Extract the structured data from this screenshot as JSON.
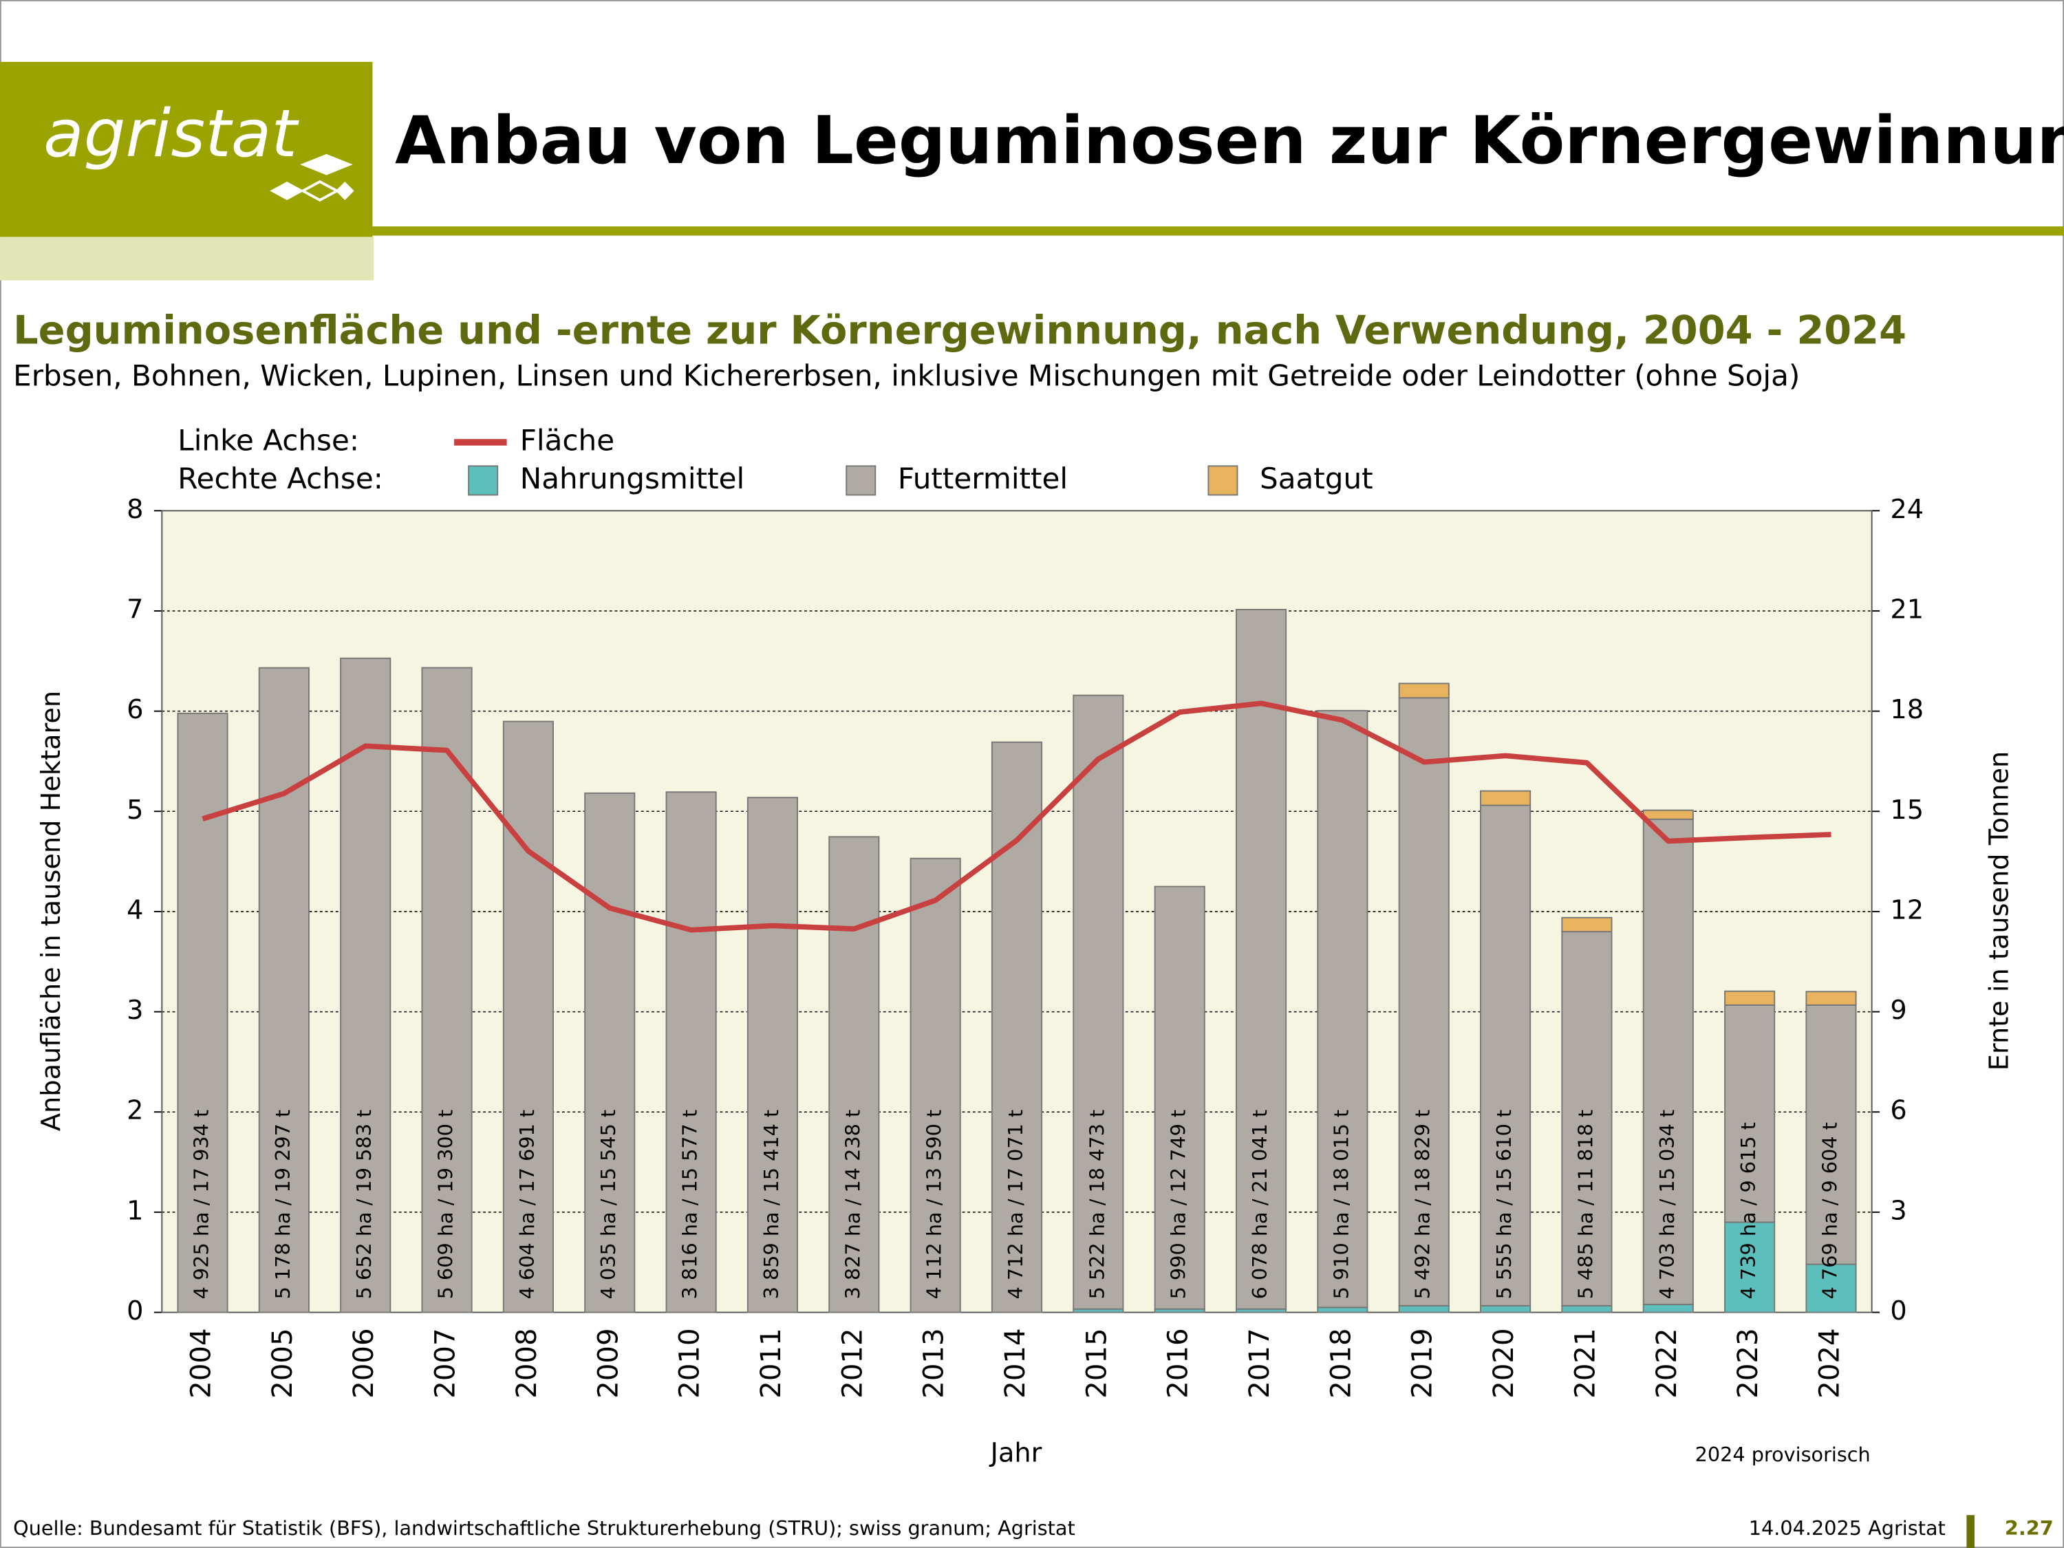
{
  "page": {
    "logo": "agristat",
    "title": "Anbau von Leguminosen zur Körnergewinnung",
    "source": "Quelle: Bundesamt für Statistik (BFS), landwirtschaftliche Strukturerhebung (STRU); swiss granum; Agristat",
    "date": "14.04.2025 Agristat",
    "page_number": "2.27"
  },
  "chart_data": {
    "type": "bar",
    "title": "Leguminosenfläche und -ernte zur Körnergewinnung, nach Verwendung, 2004 - 2024",
    "subtitle": "Erbsen, Bohnen, Wicken, Lupinen, Linsen und Kichererbsen, inklusive Mischungen mit Getreide oder Leindotter (ohne Soja)",
    "legend_left": "Linke Achse:",
    "legend_right": "Rechte Achse:",
    "xlabel": "Jahr",
    "ylabel": "Anbaufläche in tausend Hektaren",
    "y2label": "Ernte in tausend Tonnen",
    "note": "2024 provisorisch",
    "categories": [
      "2004",
      "2005",
      "2006",
      "2007",
      "2008",
      "2009",
      "2010",
      "2011",
      "2012",
      "2013",
      "2014",
      "2015",
      "2016",
      "2017",
      "2018",
      "2019",
      "2020",
      "2021",
      "2022",
      "2023",
      "2024"
    ],
    "bar_labels": [
      "4 925 ha / 17 934 t",
      "5 178 ha / 19 297 t",
      "5 652 ha / 19 583 t",
      "5 609 ha / 19 300 t",
      "4 604 ha / 17 691 t",
      "4 035 ha / 15 545 t",
      "3 816 ha / 15 577 t",
      "3 859 ha / 15 414 t",
      "3 827 ha / 14 238 t",
      "4 112 ha / 13 590 t",
      "4 712 ha / 17 071 t",
      "5 522 ha / 18 473 t",
      "5 990 ha / 12 749 t",
      "6 078 ha / 21 041 t",
      "5 910 ha / 18 015 t",
      "5 492 ha / 18 829 t",
      "5 555 ha / 15 610 t",
      "5 485 ha / 11 818 t",
      "4 703 ha / 15 034 t",
      "4 739 ha / 9 615 t",
      "4 769 ha / 9 604 t"
    ],
    "series": [
      {
        "name": "Nahrungsmittel",
        "type": "bar",
        "axis": "y2",
        "color": "#5cbfbc",
        "values": [
          0,
          0,
          0,
          0,
          0,
          0,
          0,
          0,
          0,
          0,
          0,
          0.1,
          0.1,
          0.1,
          0.15,
          0.2,
          0.2,
          0.2,
          0.24,
          2.7,
          1.44
        ]
      },
      {
        "name": "Futtermittel",
        "type": "bar",
        "axis": "y2",
        "color": "#b0aaa4",
        "values": [
          17.934,
          19.297,
          19.583,
          19.3,
          17.691,
          15.545,
          15.577,
          15.414,
          14.238,
          13.59,
          17.071,
          18.373,
          12.649,
          20.941,
          17.865,
          18.199,
          14.98,
          11.198,
          14.524,
          6.5,
          7.76
        ]
      },
      {
        "name": "Saatgut",
        "type": "bar",
        "axis": "y2",
        "color": "#e8b35f",
        "values": [
          0,
          0,
          0,
          0,
          0,
          0,
          0,
          0,
          0,
          0,
          0,
          0,
          0,
          0,
          0,
          0.43,
          0.43,
          0.42,
          0.27,
          0.415,
          0.404
        ]
      },
      {
        "name": "Fläche",
        "type": "line",
        "axis": "y",
        "color": "#c8403f",
        "values": [
          4.925,
          5.178,
          5.652,
          5.609,
          4.604,
          4.035,
          3.816,
          3.859,
          3.827,
          4.112,
          4.712,
          5.522,
          5.99,
          6.078,
          5.91,
          5.492,
          5.555,
          5.485,
          4.703,
          4.739,
          4.769
        ]
      }
    ],
    "ylim": [
      0,
      8
    ],
    "yticks": [
      0,
      1,
      2,
      3,
      4,
      5,
      6,
      7,
      8
    ],
    "y2lim": [
      0,
      24
    ],
    "y2ticks": [
      0,
      3,
      6,
      9,
      12,
      15,
      18,
      21,
      24
    ],
    "grid": true
  }
}
